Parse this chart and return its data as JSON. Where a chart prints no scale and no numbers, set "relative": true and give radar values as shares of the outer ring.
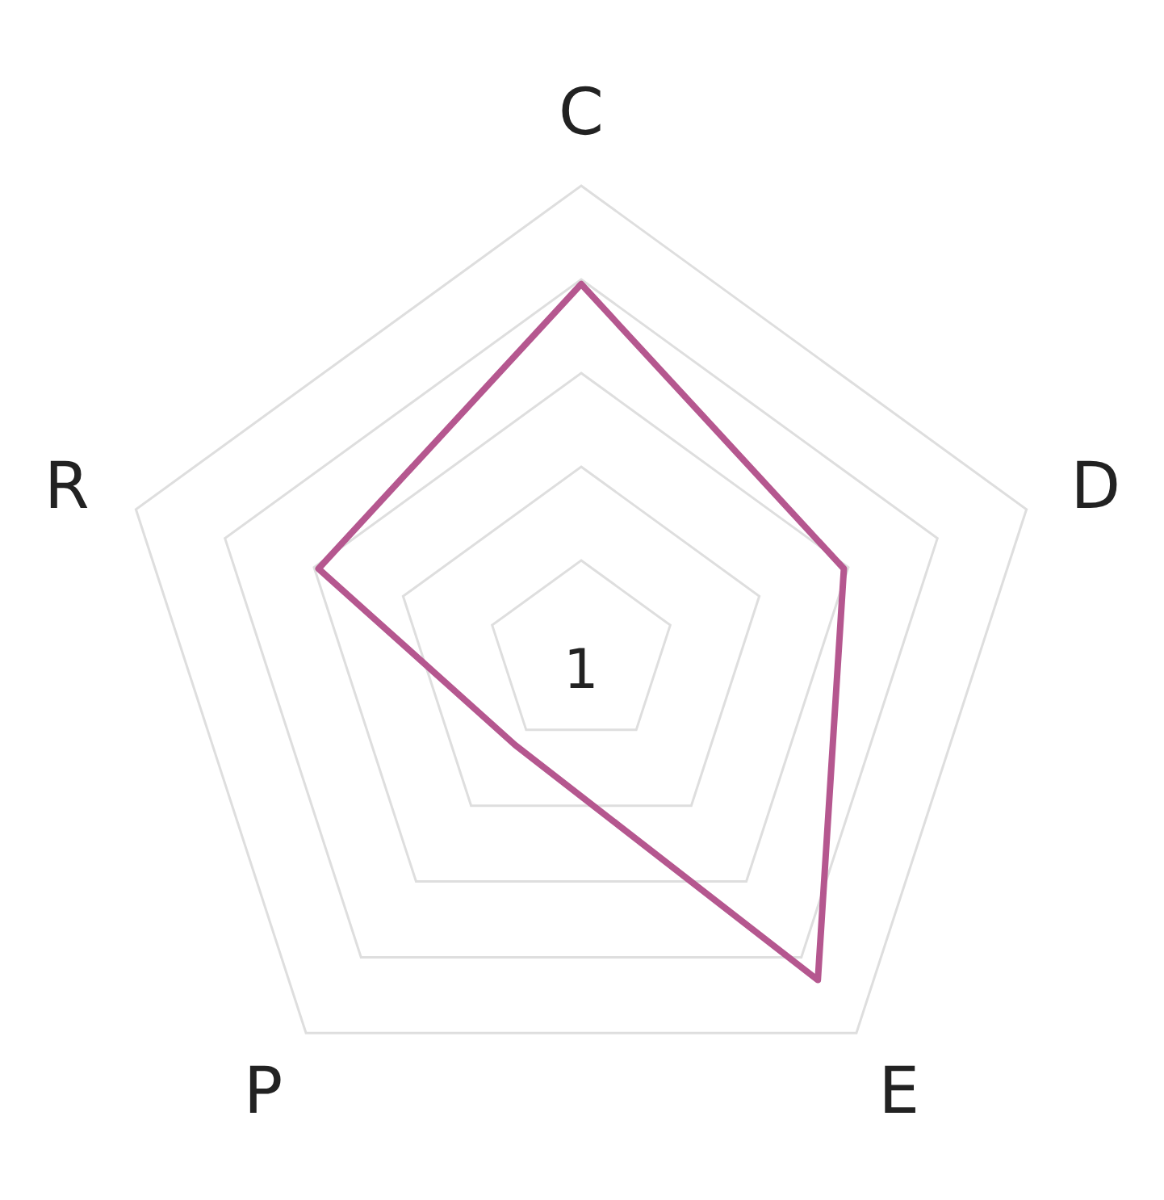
{
  "chart_data": {
    "type": "radar",
    "relative": true,
    "categories": [
      "C",
      "D",
      "E",
      "P",
      "R"
    ],
    "series": [
      {
        "color": "#b5578f",
        "values": [
          0.79,
          0.59,
          0.86,
          0.24,
          0.59
        ]
      }
    ],
    "annotations": [
      "1"
    ],
    "grid": true,
    "marker": "none",
    "line_style": "solid"
  }
}
